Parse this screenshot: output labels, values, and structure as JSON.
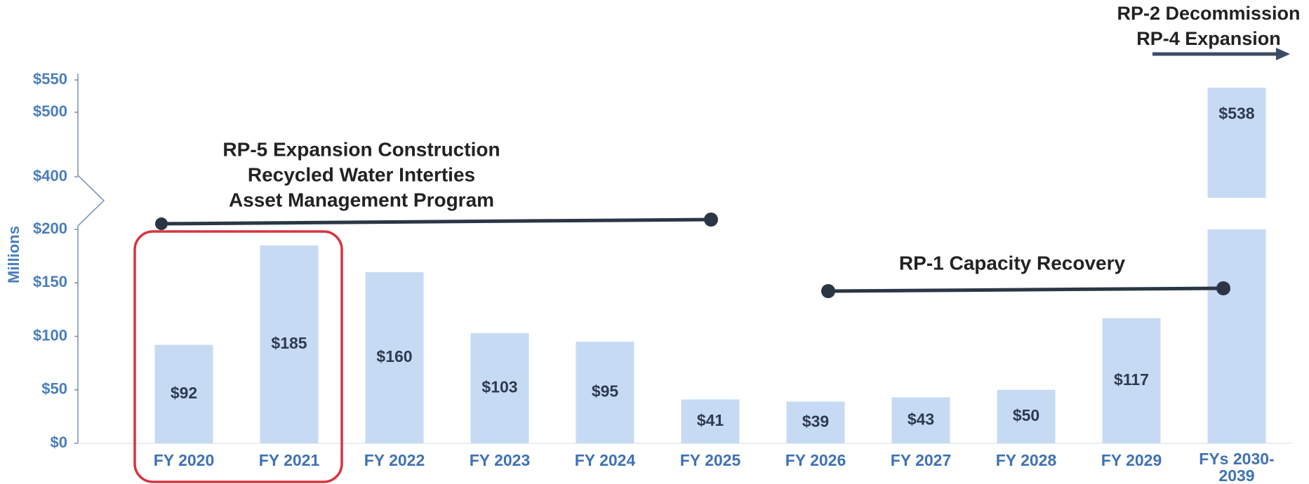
{
  "chart_data": {
    "type": "bar",
    "y_label": "Millions",
    "categories": [
      "FY 2020",
      "FY 2021",
      "FY 2022",
      "FY 2023",
      "FY 2024",
      "FY 2025",
      "FY 2026",
      "FY 2027",
      "FY 2028",
      "FY 2029",
      "FYs 2030-2039"
    ],
    "values": [
      92,
      185,
      160,
      103,
      95,
      41,
      39,
      43,
      50,
      117,
      538
    ],
    "value_labels": [
      "$92",
      "$185",
      "$160",
      "$103",
      "$95",
      "$41",
      "$39",
      "$43",
      "$50",
      "$117",
      "$538"
    ],
    "color": "#c6dbf3",
    "ylim": [
      0,
      550
    ],
    "axis_break": [
      200,
      400
    ],
    "yticks": [
      {
        "value": 0,
        "label": "$0"
      },
      {
        "value": 50,
        "label": "$50"
      },
      {
        "value": 100,
        "label": "$100"
      },
      {
        "value": 150,
        "label": "$150"
      },
      {
        "value": 200,
        "label": "$200"
      },
      {
        "value": 400,
        "label": "$400"
      },
      {
        "value": 500,
        "label": "$500"
      },
      {
        "value": 550,
        "label": "$550"
      }
    ],
    "annotations": [
      {
        "lines": [
          "RP-5 Expansion Construction",
          "Recycled Water Interties",
          "Asset Management Program"
        ]
      },
      {
        "lines": [
          "RP-1 Capacity Recovery"
        ]
      },
      {
        "lines": [
          "RP-2 Decommission",
          "RP-4 Expansion"
        ]
      }
    ]
  }
}
